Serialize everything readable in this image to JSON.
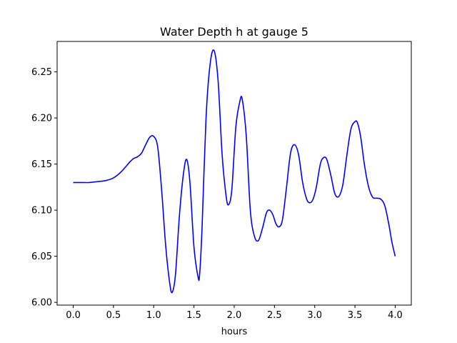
{
  "chart_data": {
    "type": "line",
    "title": "Water Depth h at gauge 5",
    "xlabel": "hours",
    "ylabel": "",
    "xlim": [
      -0.2,
      4.2
    ],
    "ylim": [
      5.997,
      6.283
    ],
    "xticks": [
      0.0,
      0.5,
      1.0,
      1.5,
      2.0,
      2.5,
      3.0,
      3.5,
      4.0
    ],
    "xtick_labels": [
      "0.0",
      "0.5",
      "1.0",
      "1.5",
      "2.0",
      "2.5",
      "3.0",
      "3.5",
      "4.0"
    ],
    "yticks": [
      6.0,
      6.05,
      6.1,
      6.15,
      6.2,
      6.25
    ],
    "ytick_labels": [
      "6.00",
      "6.05",
      "6.10",
      "6.15",
      "6.20",
      "6.25"
    ],
    "grid": false,
    "series": [
      {
        "color": "#0000ff",
        "x": [
          0.0,
          0.1,
          0.2,
          0.3,
          0.4,
          0.5,
          0.6,
          0.7,
          0.75,
          0.8,
          0.85,
          0.9,
          0.95,
          1.0,
          1.05,
          1.1,
          1.15,
          1.2,
          1.23,
          1.27,
          1.32,
          1.37,
          1.41,
          1.45,
          1.5,
          1.55,
          1.57,
          1.6,
          1.65,
          1.7,
          1.75,
          1.8,
          1.85,
          1.9,
          1.93,
          1.97,
          2.02,
          2.07,
          2.1,
          2.15,
          2.2,
          2.25,
          2.3,
          2.35,
          2.4,
          2.44,
          2.48,
          2.52,
          2.56,
          2.6,
          2.65,
          2.7,
          2.75,
          2.8,
          2.85,
          2.9,
          2.94,
          2.98,
          3.02,
          3.07,
          3.11,
          3.15,
          3.2,
          3.25,
          3.3,
          3.35,
          3.4,
          3.45,
          3.5,
          3.53,
          3.57,
          3.62,
          3.67,
          3.72,
          3.77,
          3.82,
          3.87,
          3.92,
          3.96,
          4.0
        ],
        "y": [
          6.13,
          6.13,
          6.13,
          6.131,
          6.132,
          6.135,
          6.142,
          6.152,
          6.156,
          6.158,
          6.162,
          6.171,
          6.179,
          6.18,
          6.168,
          6.12,
          6.06,
          6.02,
          6.011,
          6.03,
          6.095,
          6.14,
          6.155,
          6.13,
          6.06,
          6.028,
          6.03,
          6.08,
          6.2,
          6.258,
          6.273,
          6.24,
          6.16,
          6.115,
          6.106,
          6.122,
          6.19,
          6.218,
          6.22,
          6.18,
          6.1,
          6.072,
          6.067,
          6.08,
          6.097,
          6.1,
          6.095,
          6.085,
          6.082,
          6.09,
          6.125,
          6.162,
          6.171,
          6.16,
          6.13,
          6.112,
          6.108,
          6.112,
          6.125,
          6.15,
          6.157,
          6.155,
          6.138,
          6.118,
          6.115,
          6.128,
          6.16,
          6.188,
          6.196,
          6.195,
          6.18,
          6.148,
          6.125,
          6.114,
          6.113,
          6.112,
          6.105,
          6.085,
          6.065,
          6.05
        ]
      }
    ]
  }
}
